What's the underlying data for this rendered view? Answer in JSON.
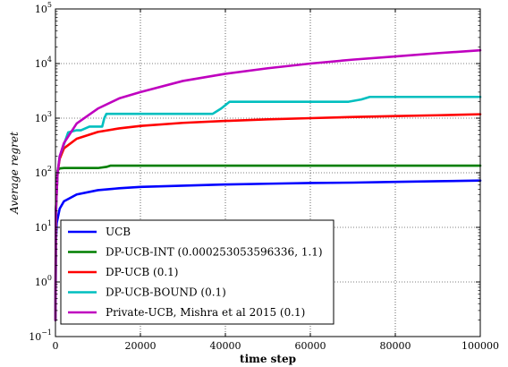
{
  "chart_data": {
    "type": "line",
    "title": "",
    "xlabel": "time step",
    "ylabel": "Average regret",
    "y_scale": "log",
    "xlim": [
      0,
      100000
    ],
    "ylim": [
      0.1,
      100000
    ],
    "grid": true,
    "legend_position": "lower-left",
    "x_ticks": [
      0,
      20000,
      40000,
      60000,
      80000,
      100000
    ],
    "x_tick_labels": [
      "0",
      "20000",
      "40000",
      "60000",
      "80000",
      "100000"
    ],
    "y_ticks": [
      0.1,
      1,
      10,
      100,
      1000,
      10000,
      100000
    ],
    "y_tick_labels": [
      {
        "base": "10",
        "exp": "−1"
      },
      {
        "base": "10",
        "exp": "0"
      },
      {
        "base": "10",
        "exp": "1"
      },
      {
        "base": "10",
        "exp": "2"
      },
      {
        "base": "10",
        "exp": "3"
      },
      {
        "base": "10",
        "exp": "4"
      },
      {
        "base": "10",
        "exp": "5"
      }
    ],
    "series": [
      {
        "name": "UCB",
        "color": "#0000ff",
        "x": [
          1,
          100,
          300,
          1000,
          2000,
          5000,
          10000,
          15000,
          20000,
          30000,
          40000,
          50000,
          60000,
          70000,
          80000,
          90000,
          100000
        ],
        "y": [
          0.2,
          5,
          12,
          22,
          30,
          40,
          48,
          52,
          55,
          58,
          61,
          63,
          65,
          66,
          68,
          70,
          72
        ]
      },
      {
        "name": "DP-UCB-INT (0.000253053596336, 1.1)",
        "color": "#007f00",
        "x": [
          1,
          200,
          500,
          1000,
          2000,
          5000,
          10000,
          12000,
          13000,
          20000,
          40000,
          60000,
          80000,
          100000
        ],
        "y": [
          0.2,
          40,
          110,
          120,
          122,
          122,
          122,
          128,
          135,
          135,
          135,
          135,
          135,
          135
        ]
      },
      {
        "name": "DP-UCB (0.1)",
        "color": "#ff0000",
        "x": [
          1,
          100,
          500,
          1000,
          2000,
          5000,
          10000,
          15000,
          20000,
          30000,
          40000,
          50000,
          60000,
          70000,
          80000,
          90000,
          100000
        ],
        "y": [
          0.2,
          20,
          100,
          180,
          280,
          420,
          560,
          650,
          720,
          820,
          890,
          950,
          1000,
          1050,
          1090,
          1130,
          1180
        ]
      },
      {
        "name": "DP-UCB-BOUND (0.1)",
        "color": "#00bfbf",
        "x": [
          1,
          100,
          500,
          1000,
          3000,
          5000,
          6000,
          8000,
          9000,
          11000,
          11500,
          12000,
          37000,
          39000,
          41000,
          69000,
          72000,
          74000,
          100000
        ],
        "y": [
          0.2,
          20,
          100,
          200,
          550,
          600,
          600,
          700,
          700,
          700,
          1000,
          1200,
          1200,
          1500,
          2000,
          2000,
          2200,
          2450,
          2450
        ]
      },
      {
        "name": "Private-UCB, Mishra et al 2015 (0.1)",
        "color": "#bf00bf",
        "x": [
          1,
          100,
          500,
          1000,
          2000,
          5000,
          10000,
          15000,
          20000,
          30000,
          40000,
          50000,
          60000,
          70000,
          80000,
          90000,
          100000
        ],
        "y": [
          0.2,
          20,
          100,
          200,
          350,
          800,
          1500,
          2300,
          3000,
          4800,
          6500,
          8200,
          10000,
          11800,
          13500,
          15500,
          17500
        ]
      }
    ]
  }
}
